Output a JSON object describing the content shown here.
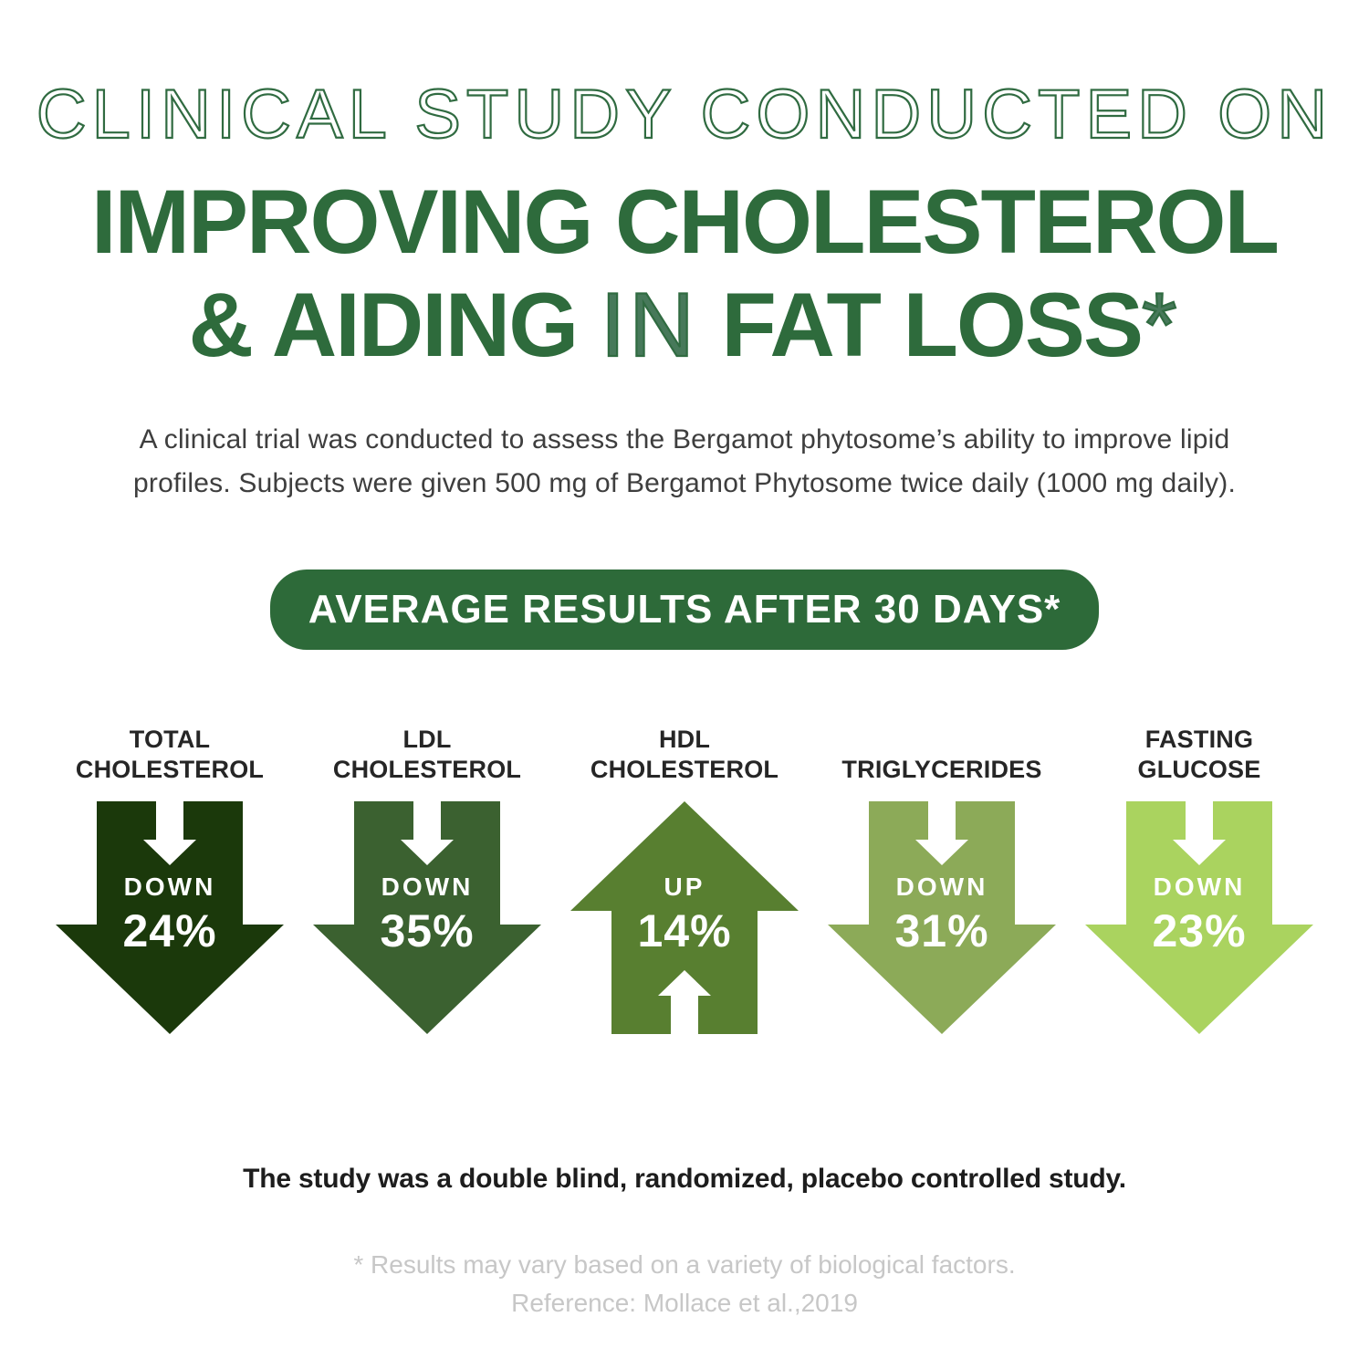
{
  "title": {
    "line1": "CLINICAL STUDY CONDUCTED ON",
    "line2": "IMPROVING CHOLESTEROL",
    "line3": {
      "bold1": "& AIDING",
      "thin": "IN",
      "bold2": "FAT LOSS",
      "asterisk": "*"
    },
    "accent_color": "#2e6b3c"
  },
  "intro": {
    "line1": "A clinical trial was conducted to assess the Bergamot phytosome’s ability to improve lipid",
    "line2": "profiles. Subjects were given 500 mg of Bergamot Phytosome twice daily (1000 mg daily)."
  },
  "banner": {
    "label": "AVERAGE RESULTS AFTER 30 DAYS*",
    "bg_color": "#2d6a39",
    "text_color": "#ffffff"
  },
  "stats": [
    {
      "label_lines": [
        "TOTAL",
        "CHOLESTEROL"
      ],
      "direction": "DOWN",
      "value": "24%",
      "arrow": "down",
      "color": "#1b390b"
    },
    {
      "label_lines": [
        "LDL",
        "CHOLESTEROL"
      ],
      "direction": "DOWN",
      "value": "35%",
      "arrow": "down",
      "color": "#3b6130"
    },
    {
      "label_lines": [
        "HDL",
        "CHOLESTEROL"
      ],
      "direction": "UP",
      "value": "14%",
      "arrow": "up",
      "color": "#587f30"
    },
    {
      "label_lines": [
        "TRIGLYCERIDES"
      ],
      "direction": "DOWN",
      "value": "31%",
      "arrow": "down",
      "color": "#8caa58"
    },
    {
      "label_lines": [
        "FASTING",
        "GLUCOSE"
      ],
      "direction": "DOWN",
      "value": "23%",
      "arrow": "down",
      "color": "#aad35f"
    }
  ],
  "study_note": "The study was a double blind, randomized, placebo controlled study.",
  "footnote": {
    "line1": "* Results may vary based on a variety of biological factors.",
    "line2": "Reference: Mollace et al.,2019"
  },
  "chart_data": {
    "type": "pictogram",
    "title": "AVERAGE RESULTS AFTER 30 DAYS*",
    "categories": [
      "Total Cholesterol",
      "LDL Cholesterol",
      "HDL Cholesterol",
      "Triglycerides",
      "Fasting Glucose"
    ],
    "change_percent": [
      -24,
      -35,
      14,
      -31,
      -23
    ],
    "directions": [
      "down",
      "down",
      "up",
      "down",
      "down"
    ],
    "colors": [
      "#1b390b",
      "#3b6130",
      "#587f30",
      "#8caa58",
      "#aad35f"
    ],
    "notes": [
      "The study was a double blind, randomized, placebo controlled study.",
      "* Results may vary based on a variety of biological factors.",
      "Reference: Mollace et al.,2019"
    ]
  }
}
